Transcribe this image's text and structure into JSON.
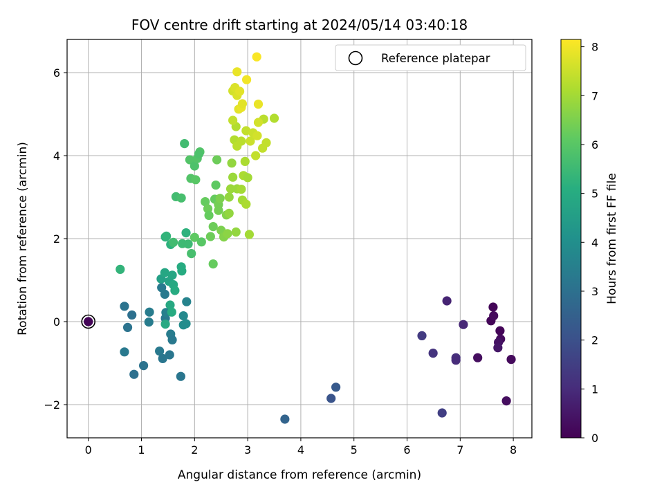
{
  "chart_data": {
    "type": "scatter",
    "title": "FOV centre drift starting at 2024/05/14 03:40:18",
    "xlabel": "Angular distance from reference (arcmin)",
    "ylabel": "Rotation from reference (arcmin)",
    "xlim": [
      -0.4,
      8.35
    ],
    "ylim": [
      -2.8,
      6.8
    ],
    "xticks": [
      0,
      1,
      2,
      3,
      4,
      5,
      6,
      7,
      8
    ],
    "yticks": [
      -2,
      0,
      2,
      4,
      6
    ],
    "grid": true,
    "legend": {
      "placement": "top-right",
      "entries": [
        "Reference platepar"
      ]
    },
    "reference": {
      "x": 0,
      "y": 0,
      "c": 0.1
    },
    "colorbar": {
      "label": "Hours from first FF file",
      "range": [
        0,
        8.15
      ],
      "ticks": [
        0,
        1,
        2,
        3,
        4,
        5,
        6,
        7,
        8
      ],
      "colormap": "viridis"
    },
    "points": [
      {
        "x": 7.62,
        "y": 0.35,
        "c": 0.1
      },
      {
        "x": 7.58,
        "y": 0.02,
        "c": 0.1
      },
      {
        "x": 7.63,
        "y": 0.14,
        "c": 0.2
      },
      {
        "x": 7.75,
        "y": -0.22,
        "c": 0.1
      },
      {
        "x": 7.76,
        "y": -0.42,
        "c": 0.2
      },
      {
        "x": 7.72,
        "y": -0.5,
        "c": 0.4
      },
      {
        "x": 7.71,
        "y": -0.63,
        "c": 0.5
      },
      {
        "x": 7.96,
        "y": -0.91,
        "c": 0.2
      },
      {
        "x": 7.87,
        "y": -1.91,
        "c": 0.3
      },
      {
        "x": 7.33,
        "y": -0.87,
        "c": 0.3
      },
      {
        "x": 7.06,
        "y": -0.07,
        "c": 0.9
      },
      {
        "x": 6.75,
        "y": 0.5,
        "c": 0.8
      },
      {
        "x": 6.92,
        "y": -0.87,
        "c": 1.1
      },
      {
        "x": 6.92,
        "y": -0.93,
        "c": 1.0
      },
      {
        "x": 6.49,
        "y": -0.76,
        "c": 1.2
      },
      {
        "x": 6.28,
        "y": -0.34,
        "c": 1.4
      },
      {
        "x": 6.66,
        "y": -2.2,
        "c": 1.5
      },
      {
        "x": 4.66,
        "y": -1.58,
        "c": 2.3
      },
      {
        "x": 4.57,
        "y": -1.85,
        "c": 2.1
      },
      {
        "x": 3.7,
        "y": -2.35,
        "c": 2.6
      },
      {
        "x": 0.0,
        "y": 0.0,
        "c": 0.1
      },
      {
        "x": 0.68,
        "y": 0.37,
        "c": 3.1
      },
      {
        "x": 0.82,
        "y": 0.16,
        "c": 3.0
      },
      {
        "x": 0.74,
        "y": -0.14,
        "c": 3.1
      },
      {
        "x": 0.68,
        "y": -0.73,
        "c": 3.3
      },
      {
        "x": 0.86,
        "y": -1.27,
        "c": 3.0
      },
      {
        "x": 1.04,
        "y": -1.06,
        "c": 3.1
      },
      {
        "x": 1.15,
        "y": 0.23,
        "c": 3.4
      },
      {
        "x": 1.14,
        "y": -0.01,
        "c": 3.4
      },
      {
        "x": 1.34,
        "y": -0.71,
        "c": 3.3
      },
      {
        "x": 1.4,
        "y": -0.89,
        "c": 3.2
      },
      {
        "x": 1.53,
        "y": -0.8,
        "c": 3.2
      },
      {
        "x": 1.74,
        "y": -1.32,
        "c": 3.2
      },
      {
        "x": 1.38,
        "y": 0.82,
        "c": 3.3
      },
      {
        "x": 1.44,
        "y": 0.66,
        "c": 3.3
      },
      {
        "x": 1.45,
        "y": 0.08,
        "c": 3.3
      },
      {
        "x": 1.46,
        "y": 0.22,
        "c": 3.5
      },
      {
        "x": 1.55,
        "y": -0.3,
        "c": 3.4
      },
      {
        "x": 1.58,
        "y": -0.44,
        "c": 3.3
      },
      {
        "x": 1.85,
        "y": 0.48,
        "c": 3.6
      },
      {
        "x": 1.79,
        "y": 0.14,
        "c": 3.8
      },
      {
        "x": 1.79,
        "y": -0.08,
        "c": 3.9
      },
      {
        "x": 1.84,
        "y": -0.05,
        "c": 3.9
      },
      {
        "x": 1.37,
        "y": 1.03,
        "c": 4.6
      },
      {
        "x": 1.44,
        "y": 1.18,
        "c": 4.8
      },
      {
        "x": 1.52,
        "y": 0.97,
        "c": 4.7
      },
      {
        "x": 1.58,
        "y": 1.12,
        "c": 4.8
      },
      {
        "x": 1.6,
        "y": 0.89,
        "c": 4.9
      },
      {
        "x": 1.63,
        "y": 0.75,
        "c": 5.0
      },
      {
        "x": 1.54,
        "y": 0.4,
        "c": 4.9
      },
      {
        "x": 1.57,
        "y": 0.23,
        "c": 5.0
      },
      {
        "x": 1.45,
        "y": -0.06,
        "c": 4.9
      },
      {
        "x": 1.75,
        "y": 1.32,
        "c": 5.0
      },
      {
        "x": 1.76,
        "y": 1.22,
        "c": 5.0
      },
      {
        "x": 0.6,
        "y": 1.26,
        "c": 5.3
      },
      {
        "x": 1.45,
        "y": 2.04,
        "c": 5.2
      },
      {
        "x": 1.47,
        "y": 2.06,
        "c": 5.3
      },
      {
        "x": 1.55,
        "y": 1.86,
        "c": 5.2
      },
      {
        "x": 1.6,
        "y": 1.91,
        "c": 5.6
      },
      {
        "x": 1.77,
        "y": 1.88,
        "c": 5.5
      },
      {
        "x": 1.84,
        "y": 2.14,
        "c": 5.2
      },
      {
        "x": 1.88,
        "y": 1.87,
        "c": 5.5
      },
      {
        "x": 1.94,
        "y": 1.64,
        "c": 5.7
      },
      {
        "x": 1.65,
        "y": 3.01,
        "c": 5.6
      },
      {
        "x": 1.75,
        "y": 2.98,
        "c": 5.7
      },
      {
        "x": 1.81,
        "y": 4.29,
        "c": 5.6
      },
      {
        "x": 1.91,
        "y": 3.9,
        "c": 5.9
      },
      {
        "x": 1.93,
        "y": 3.45,
        "c": 5.9
      },
      {
        "x": 2.0,
        "y": 3.75,
        "c": 5.8
      },
      {
        "x": 2.02,
        "y": 3.42,
        "c": 6.0
      },
      {
        "x": 2.05,
        "y": 3.93,
        "c": 5.9
      },
      {
        "x": 2.1,
        "y": 4.09,
        "c": 5.9
      },
      {
        "x": 2.08,
        "y": 4.04,
        "c": 5.8
      },
      {
        "x": 2.0,
        "y": 2.03,
        "c": 6.1
      },
      {
        "x": 2.13,
        "y": 1.92,
        "c": 6.0
      },
      {
        "x": 2.2,
        "y": 2.89,
        "c": 6.2
      },
      {
        "x": 2.25,
        "y": 2.72,
        "c": 6.3
      },
      {
        "x": 2.27,
        "y": 2.56,
        "c": 6.2
      },
      {
        "x": 2.3,
        "y": 2.05,
        "c": 6.3
      },
      {
        "x": 2.35,
        "y": 2.29,
        "c": 6.3
      },
      {
        "x": 2.35,
        "y": 1.39,
        "c": 6.2
      },
      {
        "x": 2.38,
        "y": 2.95,
        "c": 6.2
      },
      {
        "x": 2.4,
        "y": 3.29,
        "c": 6.1
      },
      {
        "x": 2.42,
        "y": 3.9,
        "c": 6.3
      },
      {
        "x": 2.45,
        "y": 2.82,
        "c": 6.4
      },
      {
        "x": 2.45,
        "y": 2.68,
        "c": 6.4
      },
      {
        "x": 2.48,
        "y": 2.97,
        "c": 6.5
      },
      {
        "x": 2.5,
        "y": 2.2,
        "c": 6.5
      },
      {
        "x": 2.55,
        "y": 2.04,
        "c": 6.6
      },
      {
        "x": 2.6,
        "y": 2.57,
        "c": 6.6
      },
      {
        "x": 2.62,
        "y": 2.12,
        "c": 6.7
      },
      {
        "x": 2.65,
        "y": 2.61,
        "c": 6.8
      },
      {
        "x": 2.65,
        "y": 3.0,
        "c": 6.8
      },
      {
        "x": 2.68,
        "y": 3.2,
        "c": 6.9
      },
      {
        "x": 2.7,
        "y": 3.82,
        "c": 6.8
      },
      {
        "x": 2.72,
        "y": 3.48,
        "c": 6.9
      },
      {
        "x": 2.78,
        "y": 2.16,
        "c": 6.8
      },
      {
        "x": 2.8,
        "y": 3.2,
        "c": 6.9
      },
      {
        "x": 2.88,
        "y": 3.19,
        "c": 7.0
      },
      {
        "x": 2.9,
        "y": 2.93,
        "c": 7.0
      },
      {
        "x": 2.92,
        "y": 3.52,
        "c": 7.1
      },
      {
        "x": 2.95,
        "y": 3.86,
        "c": 7.1
      },
      {
        "x": 2.97,
        "y": 2.83,
        "c": 7.1
      },
      {
        "x": 3.0,
        "y": 3.47,
        "c": 7.0
      },
      {
        "x": 3.03,
        "y": 2.1,
        "c": 7.0
      },
      {
        "x": 2.75,
        "y": 4.38,
        "c": 7.2
      },
      {
        "x": 2.78,
        "y": 4.7,
        "c": 7.2
      },
      {
        "x": 2.8,
        "y": 4.23,
        "c": 7.3
      },
      {
        "x": 2.72,
        "y": 4.85,
        "c": 7.4
      },
      {
        "x": 2.88,
        "y": 4.35,
        "c": 7.3
      },
      {
        "x": 2.97,
        "y": 4.6,
        "c": 7.4
      },
      {
        "x": 3.05,
        "y": 4.35,
        "c": 7.5
      },
      {
        "x": 3.1,
        "y": 4.55,
        "c": 7.5
      },
      {
        "x": 3.15,
        "y": 4.0,
        "c": 7.4
      },
      {
        "x": 3.18,
        "y": 4.48,
        "c": 7.6
      },
      {
        "x": 3.28,
        "y": 4.18,
        "c": 7.4
      },
      {
        "x": 3.35,
        "y": 4.31,
        "c": 7.4
      },
      {
        "x": 3.3,
        "y": 4.88,
        "c": 7.3
      },
      {
        "x": 3.5,
        "y": 4.9,
        "c": 7.2
      },
      {
        "x": 3.2,
        "y": 4.8,
        "c": 7.6
      },
      {
        "x": 2.72,
        "y": 5.56,
        "c": 7.6
      },
      {
        "x": 2.76,
        "y": 5.64,
        "c": 7.7
      },
      {
        "x": 2.8,
        "y": 5.45,
        "c": 7.7
      },
      {
        "x": 2.85,
        "y": 5.55,
        "c": 7.8
      },
      {
        "x": 2.83,
        "y": 5.12,
        "c": 7.8
      },
      {
        "x": 2.88,
        "y": 5.16,
        "c": 7.9
      },
      {
        "x": 2.9,
        "y": 5.25,
        "c": 7.8
      },
      {
        "x": 2.8,
        "y": 6.02,
        "c": 7.9
      },
      {
        "x": 2.98,
        "y": 5.83,
        "c": 8.0
      },
      {
        "x": 3.2,
        "y": 5.24,
        "c": 7.9
      },
      {
        "x": 3.17,
        "y": 6.38,
        "c": 8.1
      }
    ]
  }
}
